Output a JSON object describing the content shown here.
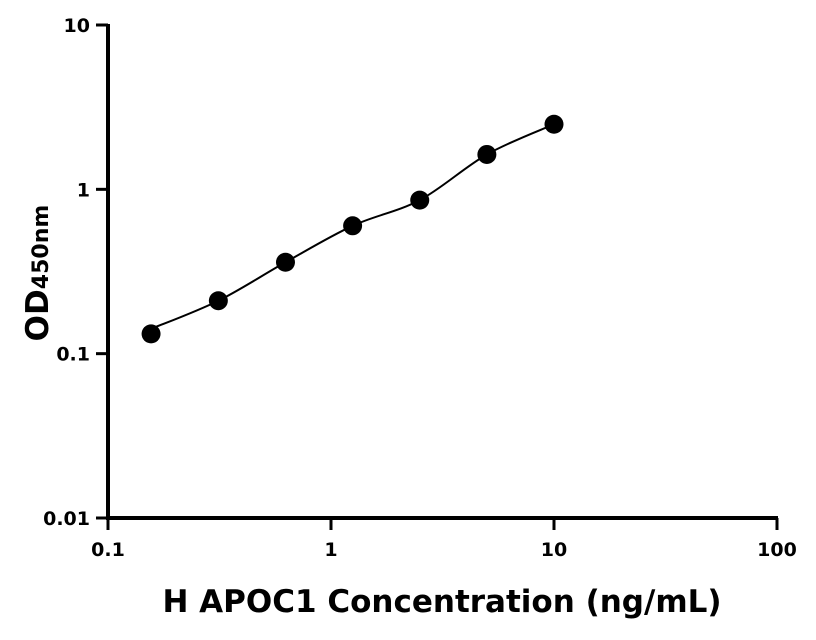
{
  "chart_data": {
    "type": "scatter",
    "title": "",
    "xlabel": "H APOC1 Concentration (ng/mL)",
    "ylabel_main": "OD",
    "ylabel_sub": "450nm",
    "xscale": "log",
    "yscale": "log",
    "xlim": [
      0.1,
      100
    ],
    "ylim": [
      0.01,
      10
    ],
    "xticks": [
      "0.1",
      "1",
      "10",
      "100"
    ],
    "yticks": [
      "0.01",
      "0.1",
      "1",
      "10"
    ],
    "grid": false,
    "fit_line": true,
    "series": [
      {
        "x": [
          0.156,
          0.3125,
          0.625,
          1.25,
          2.5,
          5,
          10
        ],
        "y": [
          0.132,
          0.21,
          0.36,
          0.6,
          0.86,
          1.63,
          2.49
        ]
      }
    ],
    "colors": {
      "marker": "#000000",
      "line": "#000000"
    }
  }
}
